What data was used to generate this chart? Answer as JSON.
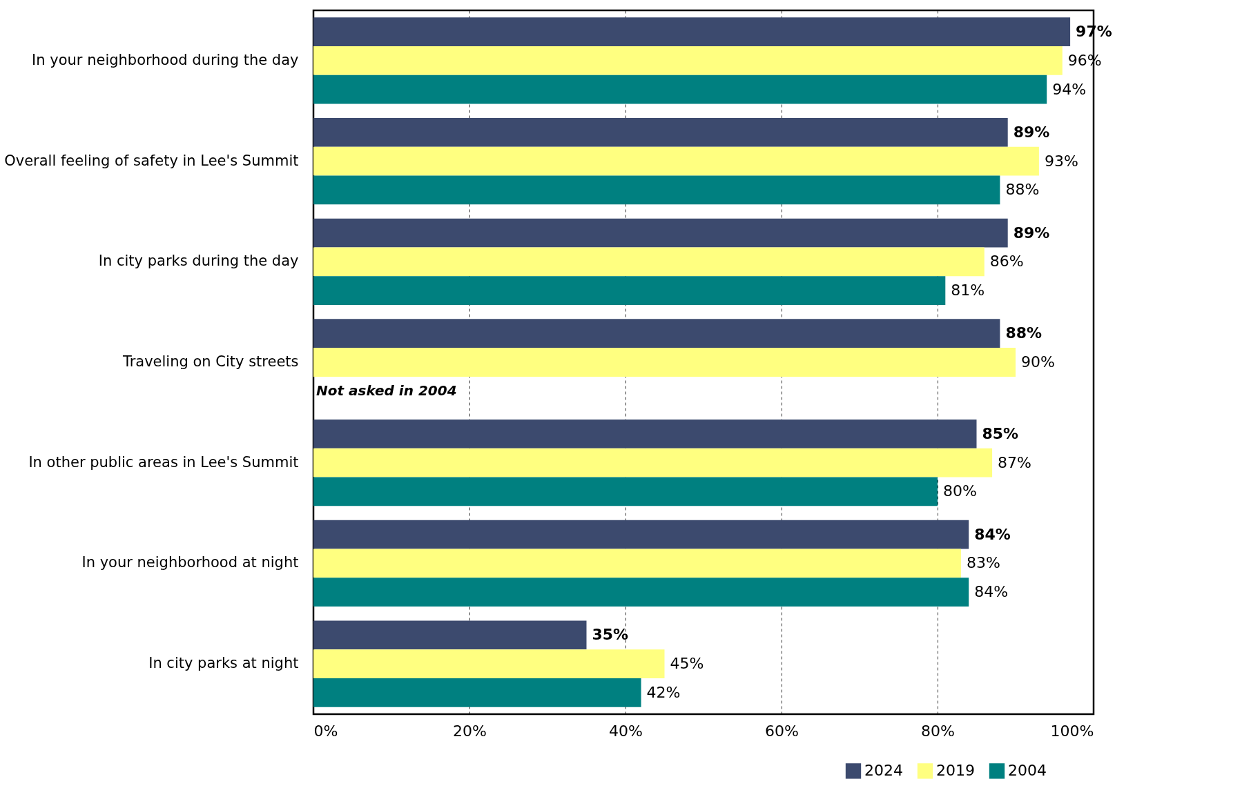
{
  "chart_data": {
    "type": "bar",
    "orientation": "horizontal",
    "categories": [
      "In your neighborhood during the day",
      "Overall feeling of safety in Lee's Summit",
      "In city parks during the day",
      "Traveling on City streets",
      "In other public areas in Lee's Summit",
      "In your neighborhood at night",
      "In city parks at night"
    ],
    "series": [
      {
        "name": "2024",
        "color": "#3c4a6e",
        "values": [
          97,
          89,
          89,
          88,
          85,
          84,
          35
        ],
        "value_labels": [
          "97%",
          "89%",
          "89%",
          "88%",
          "85%",
          "84%",
          "35%"
        ]
      },
      {
        "name": "2019",
        "color": "#ffff80",
        "values": [
          96,
          93,
          86,
          90,
          87,
          83,
          45
        ],
        "value_labels": [
          "96%",
          "93%",
          "86%",
          "90%",
          "87%",
          "83%",
          "45%"
        ]
      },
      {
        "name": "2004",
        "color": "#008080",
        "values": [
          94,
          88,
          81,
          null,
          80,
          84,
          42
        ],
        "value_labels": [
          "94%",
          "88%",
          "81%",
          null,
          "80%",
          "84%",
          "42%"
        ]
      }
    ],
    "xlim": [
      0,
      100
    ],
    "xticks": [
      {
        "value": 0,
        "label": "0%"
      },
      {
        "value": 20,
        "label": "20%"
      },
      {
        "value": 40,
        "label": "40%"
      },
      {
        "value": 60,
        "label": "60%"
      },
      {
        "value": 80,
        "label": "80%"
      },
      {
        "value": 100,
        "label": "100%"
      }
    ],
    "annotations": [
      {
        "text": "Not asked in 2004",
        "x": 0,
        "y": "Traveling on City streets"
      }
    ],
    "grid": "x",
    "legend": "bottom right"
  }
}
